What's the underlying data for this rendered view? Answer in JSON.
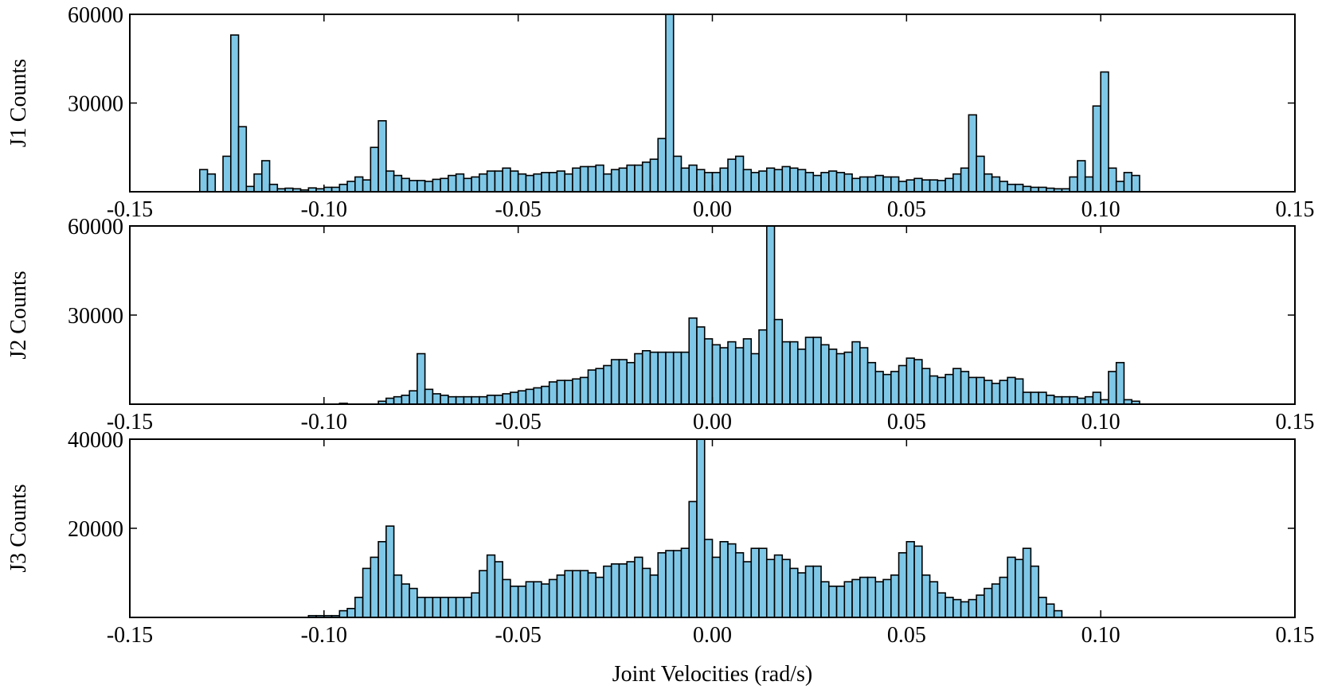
{
  "colors": {
    "bar_fill": "#7fc7e6",
    "bar_edge": "#000000",
    "axes": "#000000"
  },
  "chart_data": [
    {
      "type": "bar",
      "ylabel": "J1 Counts",
      "xlabel": "",
      "xlim": [
        -0.15,
        0.15
      ],
      "ylim": [
        0,
        60000
      ],
      "xticks": [
        -0.15,
        -0.1,
        -0.05,
        0.0,
        0.05,
        0.1,
        0.15
      ],
      "xtick_labels": [
        "-0.15",
        "-0.10",
        "-0.05",
        "0.00",
        "0.05",
        "0.10",
        "0.15"
      ],
      "yticks": [
        30000,
        60000
      ],
      "ytick_labels": [
        "30000",
        "60000"
      ],
      "bin_start": -0.132,
      "bin_width": 0.002,
      "values": [
        7500,
        6000,
        0,
        12000,
        53000,
        22000,
        1800,
        6000,
        10500,
        2500,
        1000,
        1200,
        1000,
        600,
        1300,
        1000,
        1500,
        1500,
        2500,
        3500,
        5000,
        4000,
        15000,
        24000,
        7000,
        5500,
        4500,
        3800,
        3800,
        3500,
        4200,
        4500,
        5500,
        6000,
        4500,
        5000,
        6000,
        7000,
        7000,
        8000,
        7000,
        6000,
        5500,
        6000,
        6500,
        6500,
        7000,
        6000,
        8000,
        8500,
        8500,
        9000,
        6000,
        7500,
        8000,
        9000,
        9000,
        10000,
        11000,
        18000,
        60000,
        12000,
        8000,
        9000,
        7500,
        6500,
        6500,
        8000,
        11000,
        12000,
        7500,
        6500,
        7000,
        8000,
        7500,
        8500,
        8000,
        7500,
        6500,
        5500,
        6500,
        7000,
        6500,
        6000,
        4500,
        5000,
        5000,
        5500,
        5000,
        5000,
        3500,
        4000,
        4500,
        4000,
        4000,
        3800,
        4500,
        6000,
        8000,
        26000,
        12000,
        6000,
        5000,
        3500,
        2500,
        2500,
        1800,
        1500,
        1500,
        1200,
        1000,
        1000,
        5000,
        10500,
        5000,
        29000,
        40500,
        8000,
        3500,
        6500,
        5500
      ]
    },
    {
      "type": "bar",
      "ylabel": "J2 Counts",
      "xlabel": "",
      "xlim": [
        -0.15,
        0.15
      ],
      "ylim": [
        0,
        60000
      ],
      "xticks": [
        -0.15,
        -0.1,
        -0.05,
        0.0,
        0.05,
        0.1,
        0.15
      ],
      "xtick_labels": [
        "-0.15",
        "-0.10",
        "-0.05",
        "0.00",
        "0.05",
        "0.10",
        "0.15"
      ],
      "yticks": [
        30000,
        60000
      ],
      "ytick_labels": [
        "30000",
        "60000"
      ],
      "bin_start": -0.096,
      "bin_width": 0.002,
      "values": [
        300,
        0,
        0,
        0,
        0,
        1000,
        2000,
        2500,
        3000,
        4500,
        17000,
        5000,
        3500,
        3000,
        2500,
        2500,
        2500,
        2500,
        2500,
        3000,
        3000,
        3500,
        4000,
        4500,
        5000,
        5500,
        6000,
        7500,
        8000,
        8000,
        8500,
        9000,
        11500,
        12000,
        13000,
        15000,
        15000,
        14000,
        17000,
        18000,
        17500,
        17500,
        17500,
        17500,
        17500,
        29000,
        26000,
        22000,
        20000,
        19000,
        21000,
        19000,
        22000,
        17000,
        25000,
        60000,
        28500,
        21000,
        21000,
        18500,
        22500,
        22500,
        20000,
        18500,
        17000,
        17500,
        21000,
        19000,
        14000,
        11000,
        10000,
        11000,
        13000,
        15500,
        15000,
        12000,
        9500,
        9000,
        10000,
        12000,
        11000,
        9000,
        9000,
        8000,
        7000,
        8000,
        9000,
        8500,
        4000,
        4000,
        4000,
        3000,
        2500,
        2500,
        2500,
        2000,
        2500,
        4000,
        1500,
        11000,
        14000,
        1500,
        1000
      ]
    },
    {
      "type": "bar",
      "ylabel": "J3 Counts",
      "xlabel": "Joint Velocities (rad/s)",
      "xlim": [
        -0.15,
        0.15
      ],
      "ylim": [
        0,
        40000
      ],
      "xticks": [
        -0.15,
        -0.1,
        -0.05,
        0.0,
        0.05,
        0.1,
        0.15
      ],
      "xtick_labels": [
        "-0.15",
        "-0.10",
        "-0.05",
        "0.00",
        "0.05",
        "0.10",
        "0.15"
      ],
      "yticks": [
        20000,
        40000
      ],
      "ytick_labels": [
        "20000",
        "40000"
      ],
      "bin_start": -0.104,
      "bin_width": 0.002,
      "values": [
        400,
        400,
        400,
        400,
        1500,
        2000,
        4500,
        11000,
        13500,
        17000,
        20500,
        9500,
        7500,
        6500,
        4500,
        4500,
        4500,
        4500,
        4500,
        4500,
        4500,
        5500,
        10500,
        14000,
        12500,
        8500,
        7000,
        7000,
        8000,
        8000,
        7500,
        8500,
        9500,
        10500,
        10500,
        10500,
        10000,
        9000,
        11500,
        12000,
        12000,
        12500,
        13500,
        11000,
        9500,
        14500,
        15000,
        15000,
        15500,
        26000,
        40000,
        17500,
        13500,
        17000,
        16500,
        14500,
        12500,
        15500,
        15500,
        13000,
        14000,
        13000,
        11000,
        10000,
        11500,
        11500,
        8000,
        7000,
        7000,
        8000,
        8500,
        9000,
        9000,
        8000,
        8500,
        9500,
        14500,
        17000,
        16000,
        9500,
        8000,
        5500,
        4500,
        4000,
        3500,
        4000,
        5000,
        6500,
        7500,
        9000,
        13500,
        13000,
        15500,
        11500,
        4500,
        3000,
        1500
      ]
    }
  ]
}
